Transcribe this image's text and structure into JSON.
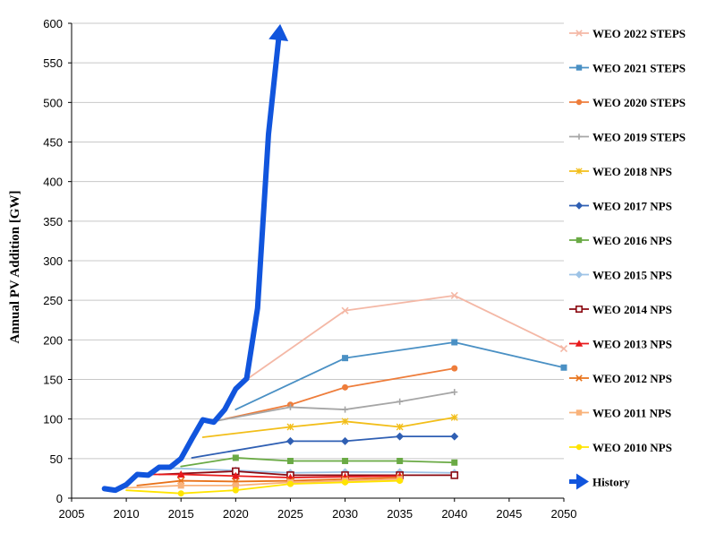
{
  "chart_data": {
    "type": "line",
    "title": "",
    "xlabel": "",
    "ylabel": "Annual PV Addition [GW]",
    "xlim": [
      2005,
      2050
    ],
    "ylim": [
      0,
      600
    ],
    "xticks": [
      2005,
      2010,
      2015,
      2020,
      2025,
      2030,
      2035,
      2040,
      2045,
      2050
    ],
    "yticks": [
      0,
      50,
      100,
      150,
      200,
      250,
      300,
      350,
      400,
      450,
      500,
      550,
      600
    ],
    "grid": true,
    "legend_position": "right",
    "series": [
      {
        "name": "WEO 2022 STEPS",
        "color": "#f4b8a6",
        "marker": "x",
        "points": [
          [
            2021,
            150
          ],
          [
            2030,
            237
          ],
          [
            2040,
            256
          ],
          [
            2050,
            189
          ]
        ]
      },
      {
        "name": "WEO 2021 STEPS",
        "color": "#4a90c4",
        "marker": "square",
        "points": [
          [
            2020,
            112
          ],
          [
            2030,
            177
          ],
          [
            2040,
            197
          ],
          [
            2050,
            165
          ]
        ]
      },
      {
        "name": "WEO 2020 STEPS",
        "color": "#ee7d3b",
        "marker": "circle",
        "points": [
          [
            2019,
            100
          ],
          [
            2025,
            118
          ],
          [
            2030,
            140
          ],
          [
            2040,
            164
          ]
        ]
      },
      {
        "name": "WEO 2019 STEPS",
        "color": "#a6a6a6",
        "marker": "plus",
        "points": [
          [
            2018,
            97
          ],
          [
            2025,
            115
          ],
          [
            2030,
            112
          ],
          [
            2035,
            122
          ],
          [
            2040,
            134
          ]
        ]
      },
      {
        "name": "WEO 2018 NPS",
        "color": "#f2be19",
        "marker": "star",
        "points": [
          [
            2017,
            77
          ],
          [
            2025,
            90
          ],
          [
            2030,
            97
          ],
          [
            2035,
            90
          ],
          [
            2040,
            102
          ]
        ]
      },
      {
        "name": "WEO 2017 NPS",
        "color": "#2f5fb3",
        "marker": "diamond",
        "points": [
          [
            2016,
            51
          ],
          [
            2025,
            72
          ],
          [
            2030,
            72
          ],
          [
            2035,
            78
          ],
          [
            2040,
            78
          ]
        ]
      },
      {
        "name": "WEO 2016 NPS",
        "color": "#6aaa45",
        "marker": "square",
        "points": [
          [
            2015,
            40
          ],
          [
            2020,
            51
          ],
          [
            2025,
            47
          ],
          [
            2030,
            47
          ],
          [
            2035,
            47
          ],
          [
            2040,
            45
          ]
        ]
      },
      {
        "name": "WEO 2015 NPS",
        "color": "#9dc3e6",
        "marker": "diamond",
        "points": [
          [
            2014,
            38
          ],
          [
            2020,
            35
          ],
          [
            2025,
            32
          ],
          [
            2030,
            33
          ],
          [
            2035,
            33
          ],
          [
            2040,
            32
          ]
        ]
      },
      {
        "name": "WEO 2014 NPS",
        "color": "#8b0a12",
        "marker": "square-open",
        "points": [
          [
            2013,
            30
          ],
          [
            2020,
            34
          ],
          [
            2025,
            29
          ],
          [
            2030,
            29
          ],
          [
            2035,
            29
          ],
          [
            2040,
            29
          ]
        ]
      },
      {
        "name": "WEO 2013 NPS",
        "color": "#e8191b",
        "marker": "triangle",
        "points": [
          [
            2012,
            30
          ],
          [
            2015,
            30
          ],
          [
            2020,
            28
          ],
          [
            2025,
            26
          ],
          [
            2030,
            27
          ],
          [
            2035,
            28
          ]
        ]
      },
      {
        "name": "WEO 2012 NPS",
        "color": "#e8721a",
        "marker": "x",
        "points": [
          [
            2011,
            16
          ],
          [
            2015,
            22
          ],
          [
            2020,
            21
          ],
          [
            2025,
            22
          ],
          [
            2030,
            24
          ],
          [
            2035,
            26
          ]
        ]
      },
      {
        "name": "WEO 2011 NPS",
        "color": "#f9b27a",
        "marker": "square",
        "points": [
          [
            2010,
            13
          ],
          [
            2015,
            16
          ],
          [
            2020,
            16
          ],
          [
            2025,
            20
          ],
          [
            2030,
            22
          ],
          [
            2035,
            24
          ]
        ]
      },
      {
        "name": "WEO 2010 NPS",
        "color": "#ffe400",
        "marker": "circle",
        "points": [
          [
            2010,
            10
          ],
          [
            2015,
            6
          ],
          [
            2020,
            10
          ],
          [
            2025,
            18
          ],
          [
            2030,
            20
          ],
          [
            2035,
            22
          ]
        ]
      },
      {
        "name": "History",
        "color": "#1155dd",
        "marker": "arrow",
        "points": [
          [
            2008,
            12
          ],
          [
            2009,
            10
          ],
          [
            2010,
            17
          ],
          [
            2011,
            30
          ],
          [
            2012,
            29
          ],
          [
            2013,
            39
          ],
          [
            2014,
            39
          ],
          [
            2015,
            50
          ],
          [
            2016,
            75
          ],
          [
            2017,
            99
          ],
          [
            2018,
            96
          ],
          [
            2019,
            112
          ],
          [
            2020,
            138
          ],
          [
            2021,
            151
          ],
          [
            2022,
            240
          ],
          [
            2023,
            460
          ],
          [
            2024,
            590
          ]
        ]
      }
    ]
  }
}
